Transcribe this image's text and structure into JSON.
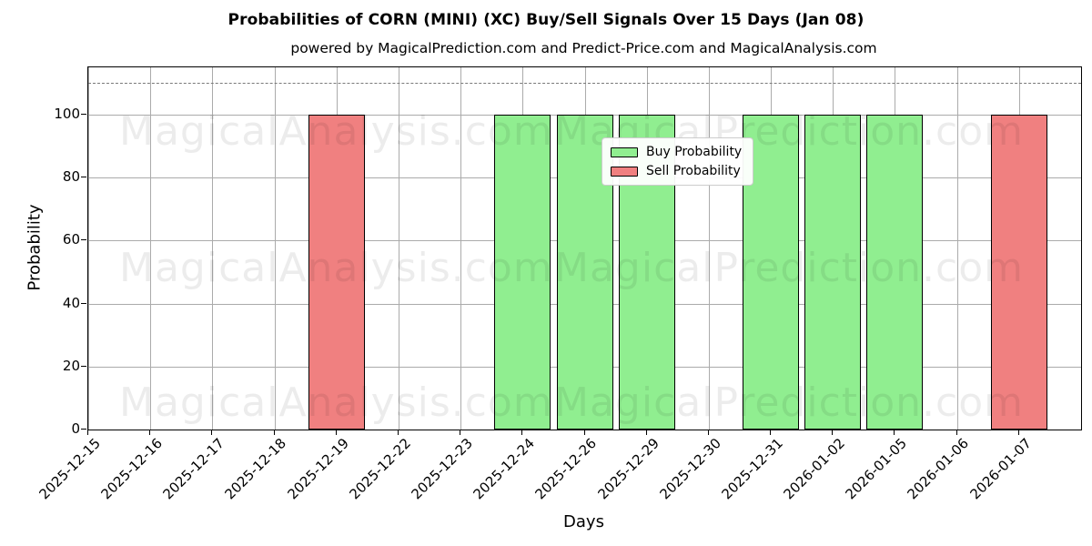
{
  "chart_data": {
    "type": "bar",
    "title": "Probabilities of CORN (MINI) (XC) Buy/Sell Signals Over 15 Days (Jan 08)",
    "subtitle": "powered by MagicalPrediction.com and Predict-Price.com and MagicalAnalysis.com",
    "xlabel": "Days",
    "ylabel": "Probability",
    "ylim": [
      0,
      115
    ],
    "yticks": [
      0,
      20,
      40,
      60,
      80,
      100
    ],
    "grid": true,
    "legend_position": "top center",
    "dashed_line_y": 110,
    "categories": [
      "2025-12-15",
      "2025-12-16",
      "2025-12-17",
      "2025-12-18",
      "2025-12-19",
      "2025-12-22",
      "2025-12-23",
      "2025-12-24",
      "2025-12-26",
      "2025-12-29",
      "2025-12-30",
      "2025-12-31",
      "2026-01-02",
      "2026-01-05",
      "2026-01-06",
      "2026-01-07"
    ],
    "series": [
      {
        "name": "Buy Probability",
        "color": "#90EE90",
        "values": [
          0,
          0,
          0,
          0,
          0,
          0,
          0,
          100,
          100,
          100,
          0,
          100,
          100,
          100,
          0,
          0
        ]
      },
      {
        "name": "Sell Probability",
        "color": "#F08080",
        "values": [
          0,
          0,
          0,
          0,
          100,
          0,
          0,
          0,
          0,
          0,
          0,
          0,
          0,
          0,
          0,
          100
        ]
      }
    ],
    "watermark": {
      "left_text": "MagicalAnalysis.com",
      "right_text": "MagicalPrediction.com",
      "rows": 3
    }
  }
}
